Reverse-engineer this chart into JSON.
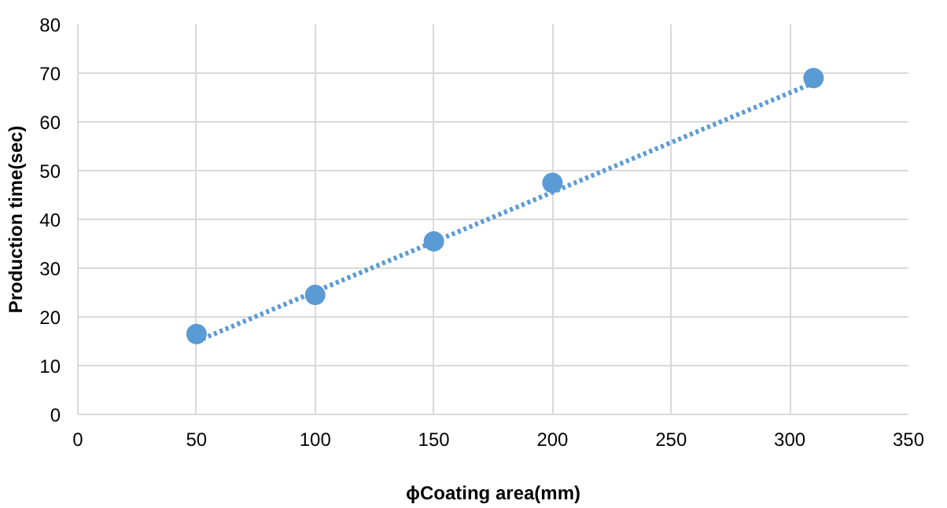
{
  "chart_data": {
    "type": "scatter",
    "xlabel": "ϕCoating area(mm)",
    "ylabel": "Production time(sec)",
    "x": [
      50,
      100,
      150,
      200,
      310
    ],
    "series": [
      {
        "color": "#5b9bd5",
        "values": [
          16.5,
          24.5,
          35.5,
          47.5,
          69
        ],
        "marker": "circle"
      },
      {
        "type": "line",
        "color": "#5b9bd5",
        "x": [
          50,
          310
        ],
        "values": [
          15,
          68
        ],
        "line_style": "dotted",
        "marker": "none"
      }
    ],
    "xlim": [
      0,
      350
    ],
    "xticks": [
      0,
      50,
      100,
      150,
      200,
      250,
      300,
      350
    ],
    "ylim": [
      0,
      80
    ],
    "yticks": [
      0,
      10,
      20,
      30,
      40,
      50,
      60,
      70,
      80
    ],
    "grid": true
  }
}
